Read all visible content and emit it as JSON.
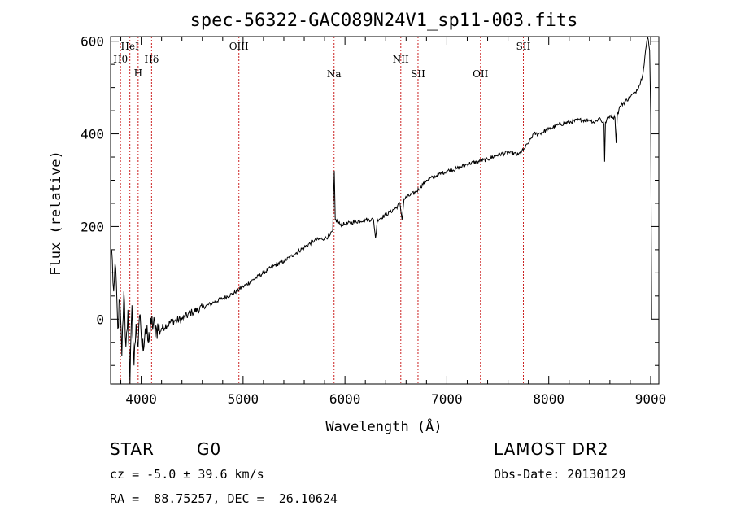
{
  "chart_data": {
    "type": "line",
    "title": "spec-56322-GAC089N24V1_sp11-003.fits",
    "xlabel": "Wavelength (Å)",
    "ylabel": "Flux (relative)",
    "xlim": [
      3700,
      9080
    ],
    "ylim": [
      -140,
      610
    ],
    "xticks": [
      4000,
      5000,
      6000,
      7000,
      8000,
      9000
    ],
    "yticks": [
      0,
      200,
      400,
      600
    ],
    "grid": false,
    "line_color": "#000000",
    "marker_color": "#cc2222",
    "series": [
      {
        "points": [
          [
            3710,
            150
          ],
          [
            3730,
            60
          ],
          [
            3750,
            110
          ],
          [
            3770,
            -20
          ],
          [
            3790,
            40
          ],
          [
            3810,
            -80
          ],
          [
            3830,
            60
          ],
          [
            3850,
            -60
          ],
          [
            3870,
            20
          ],
          [
            3890,
            -140
          ],
          [
            3910,
            30
          ],
          [
            3930,
            -100
          ],
          [
            3950,
            -10
          ],
          [
            3970,
            -60
          ],
          [
            3990,
            10
          ],
          [
            4010,
            -70
          ],
          [
            4040,
            -20
          ],
          [
            4070,
            -50
          ],
          [
            4100,
            -10
          ],
          [
            4150,
            -20
          ],
          [
            4200,
            -20
          ],
          [
            4300,
            -5
          ],
          [
            4400,
            0
          ],
          [
            4500,
            15
          ],
          [
            4600,
            25
          ],
          [
            4700,
            35
          ],
          [
            4800,
            45
          ],
          [
            4900,
            55
          ],
          [
            5000,
            70
          ],
          [
            5100,
            85
          ],
          [
            5200,
            100
          ],
          [
            5300,
            115
          ],
          [
            5400,
            125
          ],
          [
            5500,
            140
          ],
          [
            5600,
            155
          ],
          [
            5700,
            170
          ],
          [
            5800,
            175
          ],
          [
            5850,
            180
          ],
          [
            5880,
            190
          ],
          [
            5895,
            320
          ],
          [
            5905,
            215
          ],
          [
            5950,
            205
          ],
          [
            6000,
            205
          ],
          [
            6100,
            210
          ],
          [
            6200,
            215
          ],
          [
            6280,
            215
          ],
          [
            6300,
            175
          ],
          [
            6320,
            215
          ],
          [
            6400,
            225
          ],
          [
            6500,
            240
          ],
          [
            6540,
            250
          ],
          [
            6560,
            215
          ],
          [
            6580,
            260
          ],
          [
            6700,
            275
          ],
          [
            6800,
            300
          ],
          [
            6900,
            310
          ],
          [
            7000,
            320
          ],
          [
            7100,
            325
          ],
          [
            7200,
            335
          ],
          [
            7300,
            340
          ],
          [
            7400,
            345
          ],
          [
            7500,
            355
          ],
          [
            7600,
            360
          ],
          [
            7700,
            355
          ],
          [
            7750,
            365
          ],
          [
            7800,
            380
          ],
          [
            7850,
            400
          ],
          [
            7900,
            400
          ],
          [
            8000,
            410
          ],
          [
            8100,
            420
          ],
          [
            8200,
            425
          ],
          [
            8300,
            430
          ],
          [
            8400,
            430
          ],
          [
            8450,
            425
          ],
          [
            8500,
            435
          ],
          [
            8542,
            420
          ],
          [
            8548,
            340
          ],
          [
            8556,
            425
          ],
          [
            8600,
            440
          ],
          [
            8650,
            435
          ],
          [
            8662,
            380
          ],
          [
            8672,
            440
          ],
          [
            8700,
            460
          ],
          [
            8800,
            480
          ],
          [
            8850,
            490
          ],
          [
            8900,
            510
          ],
          [
            8930,
            540
          ],
          [
            8950,
            580
          ],
          [
            8970,
            610
          ],
          [
            8990,
            580
          ],
          [
            9000,
            440
          ],
          [
            9005,
            220
          ],
          [
            9010,
            0
          ]
        ]
      }
    ],
    "lines": [
      {
        "label": "Hθ",
        "x": 3797
      },
      {
        "label": "HeI",
        "x": 3889
      },
      {
        "label": "H",
        "x": 3970
      },
      {
        "label": "Hδ",
        "x": 4102
      },
      {
        "label": "OIII",
        "x": 4959
      },
      {
        "label": "Na",
        "x": 5893
      },
      {
        "label": "NII",
        "x": 6548
      },
      {
        "label": "SII",
        "x": 6717
      },
      {
        "label": "OII",
        "x": 7330
      },
      {
        "label": "SII",
        "x": 7751
      }
    ]
  },
  "info": {
    "object_class": "STAR",
    "subclass": "G0",
    "survey": "LAMOST DR2",
    "cz": "cz = -5.0 ± 39.6 km/s",
    "obs_date": "Obs-Date: 20130129",
    "coords": "RA =  88.75257, DEC =  26.10624"
  }
}
